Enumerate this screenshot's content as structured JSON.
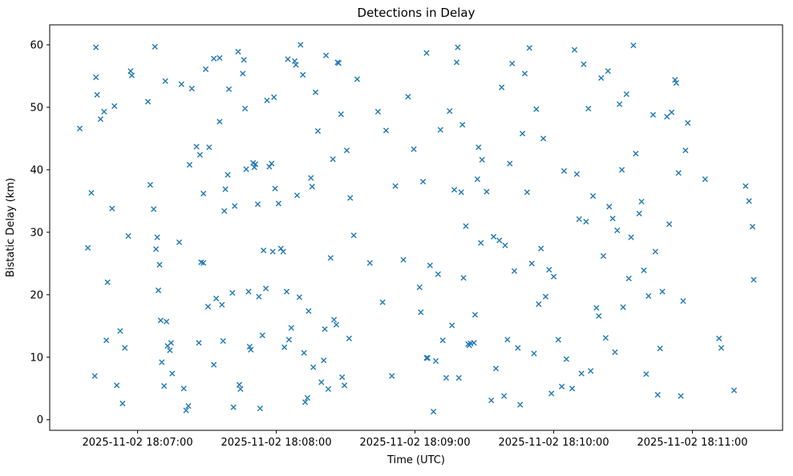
{
  "figure": {
    "background": "#ffffff",
    "spine_color": "#000000"
  },
  "chart_data": {
    "type": "scatter",
    "marker": "x",
    "marker_color": "#1f77b4",
    "title": "Detections in Delay",
    "xlabel": "Time (UTC)",
    "ylabel": "Bistatic Delay (km)",
    "x_encoding": "seconds after 2025-11-02 18:06:00 UTC",
    "xlim": [
      22,
      339
    ],
    "ylim": [
      -1.7,
      63.2
    ],
    "x_ticks": [
      60,
      120,
      180,
      240,
      300
    ],
    "x_tick_labels": [
      "2025-11-02 18:07:00",
      "2025-11-02 18:08:00",
      "2025-11-02 18:09:00",
      "2025-11-02 18:10:00",
      "2025-11-02 18:11:00"
    ],
    "y_ticks": [
      0,
      10,
      20,
      30,
      40,
      50,
      60
    ],
    "points": [
      [
        35,
        46.6
      ],
      [
        38.5,
        27.5
      ],
      [
        40,
        36.3
      ],
      [
        41.5,
        7
      ],
      [
        42,
        59.6
      ],
      [
        42,
        54.8
      ],
      [
        42.5,
        52
      ],
      [
        44,
        48.1
      ],
      [
        45.5,
        49.3
      ],
      [
        46.5,
        12.7
      ],
      [
        47,
        22
      ],
      [
        49,
        33.8
      ],
      [
        50,
        50.2
      ],
      [
        51,
        5.5
      ],
      [
        52.5,
        14.2
      ],
      [
        53.5,
        2.6
      ],
      [
        54.5,
        11.5
      ],
      [
        56,
        29.4
      ],
      [
        57,
        55.8
      ],
      [
        57.5,
        55.1
      ],
      [
        64.5,
        50.9
      ],
      [
        65.5,
        37.6
      ],
      [
        67,
        33.7
      ],
      [
        67.5,
        59.7
      ],
      [
        68,
        27.3
      ],
      [
        68.5,
        29.2
      ],
      [
        69,
        20.7
      ],
      [
        69.5,
        24.8
      ],
      [
        70,
        15.9
      ],
      [
        70.5,
        9.2
      ],
      [
        71.5,
        5.4
      ],
      [
        72,
        54.2
      ],
      [
        72.5,
        15.7
      ],
      [
        73,
        11.8
      ],
      [
        74,
        11.1
      ],
      [
        74.5,
        12.3
      ],
      [
        75,
        7.4
      ],
      [
        78,
        28.4
      ],
      [
        79,
        53.7
      ],
      [
        80,
        5
      ],
      [
        81,
        1.5
      ],
      [
        82,
        2.2
      ],
      [
        82.5,
        40.8
      ],
      [
        83.5,
        53
      ],
      [
        85.5,
        43.7
      ],
      [
        86.5,
        12.3
      ],
      [
        87,
        42.4
      ],
      [
        87.5,
        25.2
      ],
      [
        88.5,
        25.1
      ],
      [
        88.5,
        36.2
      ],
      [
        89.5,
        56.1
      ],
      [
        90.5,
        18.1
      ],
      [
        91,
        43.6
      ],
      [
        93,
        57.8
      ],
      [
        93,
        8.8
      ],
      [
        94,
        19.4
      ],
      [
        95.5,
        57.9
      ],
      [
        95.5,
        47.7
      ],
      [
        96.5,
        18.4
      ],
      [
        97,
        12.6
      ],
      [
        97.5,
        33.4
      ],
      [
        98,
        36.9
      ],
      [
        99,
        39.2
      ],
      [
        99.5,
        52.9
      ],
      [
        101,
        20.3
      ],
      [
        101.5,
        2
      ],
      [
        102,
        34.2
      ],
      [
        103.5,
        58.9
      ],
      [
        104,
        5.6
      ],
      [
        104.5,
        4.9
      ],
      [
        105.5,
        55.4
      ],
      [
        106,
        57.6
      ],
      [
        106.5,
        49.8
      ],
      [
        107,
        40.1
      ],
      [
        108,
        20.5
      ],
      [
        108.5,
        11.7
      ],
      [
        109,
        11.2
      ],
      [
        110,
        41.1
      ],
      [
        110.5,
        40.4
      ],
      [
        111,
        40.9
      ],
      [
        112,
        34.5
      ],
      [
        112.5,
        19.7
      ],
      [
        113,
        1.8
      ],
      [
        114,
        13.5
      ],
      [
        114.5,
        27.1
      ],
      [
        115.5,
        21
      ],
      [
        116,
        51.1
      ],
      [
        117,
        40.5
      ],
      [
        118,
        41
      ],
      [
        118.5,
        26.9
      ],
      [
        119,
        51.6
      ],
      [
        119.5,
        37
      ],
      [
        121,
        34.6
      ],
      [
        122,
        27.4
      ],
      [
        123,
        26.9
      ],
      [
        123.5,
        11.6
      ],
      [
        124.5,
        20.5
      ],
      [
        125,
        57.7
      ],
      [
        125.5,
        12.8
      ],
      [
        126.5,
        14.7
      ],
      [
        128,
        57.4
      ],
      [
        128.5,
        56.8
      ],
      [
        129,
        35.9
      ],
      [
        130,
        19.6
      ],
      [
        130.5,
        60
      ],
      [
        131.5,
        55.2
      ],
      [
        132,
        10.7
      ],
      [
        132.5,
        2.8
      ],
      [
        133.5,
        3.5
      ],
      [
        134,
        17.4
      ],
      [
        135,
        38.7
      ],
      [
        135.5,
        37.3
      ],
      [
        136,
        8.4
      ],
      [
        137,
        52.4
      ],
      [
        138,
        46.2
      ],
      [
        139.5,
        6
      ],
      [
        140.5,
        9.5
      ],
      [
        141,
        14.5
      ],
      [
        141.5,
        58.3
      ],
      [
        142.5,
        4.9
      ],
      [
        143.5,
        25.9
      ],
      [
        144.5,
        41.7
      ],
      [
        145,
        16
      ],
      [
        146,
        15.2
      ],
      [
        146.5,
        57.2
      ],
      [
        147,
        57.1
      ],
      [
        148,
        48.9
      ],
      [
        148.5,
        6.8
      ],
      [
        149.5,
        5.5
      ],
      [
        150.5,
        43.1
      ],
      [
        151.5,
        13
      ],
      [
        152,
        35.5
      ],
      [
        153.5,
        29.5
      ],
      [
        155,
        54.5
      ],
      [
        160.5,
        25.1
      ],
      [
        164,
        49.3
      ],
      [
        166,
        18.8
      ],
      [
        167.5,
        46.3
      ],
      [
        170,
        7
      ],
      [
        171.5,
        37.4
      ],
      [
        175,
        25.6
      ],
      [
        177,
        51.7
      ],
      [
        179.5,
        43.3
      ],
      [
        182,
        21.2
      ],
      [
        182.5,
        17.2
      ],
      [
        183.5,
        38.1
      ],
      [
        185,
        9.9
      ],
      [
        185.5,
        9.9
      ],
      [
        185,
        58.7
      ],
      [
        186.5,
        24.7
      ],
      [
        188,
        1.3
      ],
      [
        189,
        9.4
      ],
      [
        190,
        23.3
      ],
      [
        191,
        46.4
      ],
      [
        192,
        12.7
      ],
      [
        193.5,
        6.7
      ],
      [
        195,
        49.4
      ],
      [
        196,
        15.1
      ],
      [
        197,
        36.8
      ],
      [
        198,
        57.2
      ],
      [
        198.5,
        59.6
      ],
      [
        199,
        6.7
      ],
      [
        200,
        36.4
      ],
      [
        200.5,
        47.2
      ],
      [
        201,
        22.7
      ],
      [
        202,
        31
      ],
      [
        203,
        12.1
      ],
      [
        203.5,
        11.9
      ],
      [
        204,
        12.2
      ],
      [
        205.5,
        12.3
      ],
      [
        206,
        16.8
      ],
      [
        207,
        38.5
      ],
      [
        207.5,
        43.6
      ],
      [
        208.5,
        28.3
      ],
      [
        209,
        41.6
      ],
      [
        211,
        36.5
      ],
      [
        213,
        3.1
      ],
      [
        214,
        29.3
      ],
      [
        215,
        8.2
      ],
      [
        216.5,
        28.7
      ],
      [
        217.5,
        53.2
      ],
      [
        218.5,
        3.8
      ],
      [
        219,
        27.9
      ],
      [
        220,
        12.8
      ],
      [
        221,
        41
      ],
      [
        222,
        57
      ],
      [
        223,
        23.8
      ],
      [
        224.5,
        11.5
      ],
      [
        225.5,
        2.4
      ],
      [
        226.5,
        45.8
      ],
      [
        227.5,
        55.4
      ],
      [
        228.5,
        36.4
      ],
      [
        229.5,
        59.5
      ],
      [
        230.5,
        25
      ],
      [
        231.5,
        10.6
      ],
      [
        232.5,
        49.7
      ],
      [
        233.5,
        18.5
      ],
      [
        234.5,
        27.4
      ],
      [
        235.5,
        45
      ],
      [
        236.5,
        19.7
      ],
      [
        238,
        24
      ],
      [
        239,
        4.2
      ],
      [
        240,
        22.9
      ],
      [
        242,
        12.8
      ],
      [
        243.5,
        5.3
      ],
      [
        244.5,
        39.8
      ],
      [
        245.5,
        9.7
      ],
      [
        248,
        5
      ],
      [
        249,
        59.2
      ],
      [
        250,
        39.3
      ],
      [
        251,
        32.1
      ],
      [
        252,
        7.4
      ],
      [
        253,
        56.9
      ],
      [
        254,
        31.7
      ],
      [
        255,
        49.8
      ],
      [
        256,
        7.8
      ],
      [
        257,
        35.8
      ],
      [
        258.5,
        17.9
      ],
      [
        259.5,
        16.6
      ],
      [
        260.5,
        54.7
      ],
      [
        261.5,
        26.2
      ],
      [
        262.5,
        13.1
      ],
      [
        263.5,
        55.8
      ],
      [
        264,
        34.1
      ],
      [
        265.5,
        32.2
      ],
      [
        266.5,
        10.8
      ],
      [
        267.5,
        30.3
      ],
      [
        268.5,
        50.5
      ],
      [
        269.5,
        40
      ],
      [
        270,
        18
      ],
      [
        271.5,
        52.1
      ],
      [
        272.5,
        22.6
      ],
      [
        273.5,
        29.2
      ],
      [
        274.5,
        59.9
      ],
      [
        275.5,
        42.6
      ],
      [
        277,
        33
      ],
      [
        278,
        34.9
      ],
      [
        279,
        23.9
      ],
      [
        280,
        7.3
      ],
      [
        281,
        19.8
      ],
      [
        283,
        48.8
      ],
      [
        284,
        26.9
      ],
      [
        285,
        4
      ],
      [
        286,
        11.4
      ],
      [
        287,
        20.5
      ],
      [
        289,
        48.5
      ],
      [
        290,
        31.3
      ],
      [
        291,
        49.2
      ],
      [
        292.5,
        54.4
      ],
      [
        293,
        53.9
      ],
      [
        294,
        39.5
      ],
      [
        295,
        3.8
      ],
      [
        296,
        19
      ],
      [
        297,
        43.1
      ],
      [
        298,
        47.5
      ],
      [
        305.5,
        38.5
      ],
      [
        311.5,
        13
      ],
      [
        312.5,
        11.5
      ],
      [
        318,
        4.7
      ],
      [
        323,
        37.4
      ],
      [
        324.5,
        35
      ],
      [
        326,
        30.9
      ],
      [
        326.5,
        22.4
      ]
    ]
  }
}
